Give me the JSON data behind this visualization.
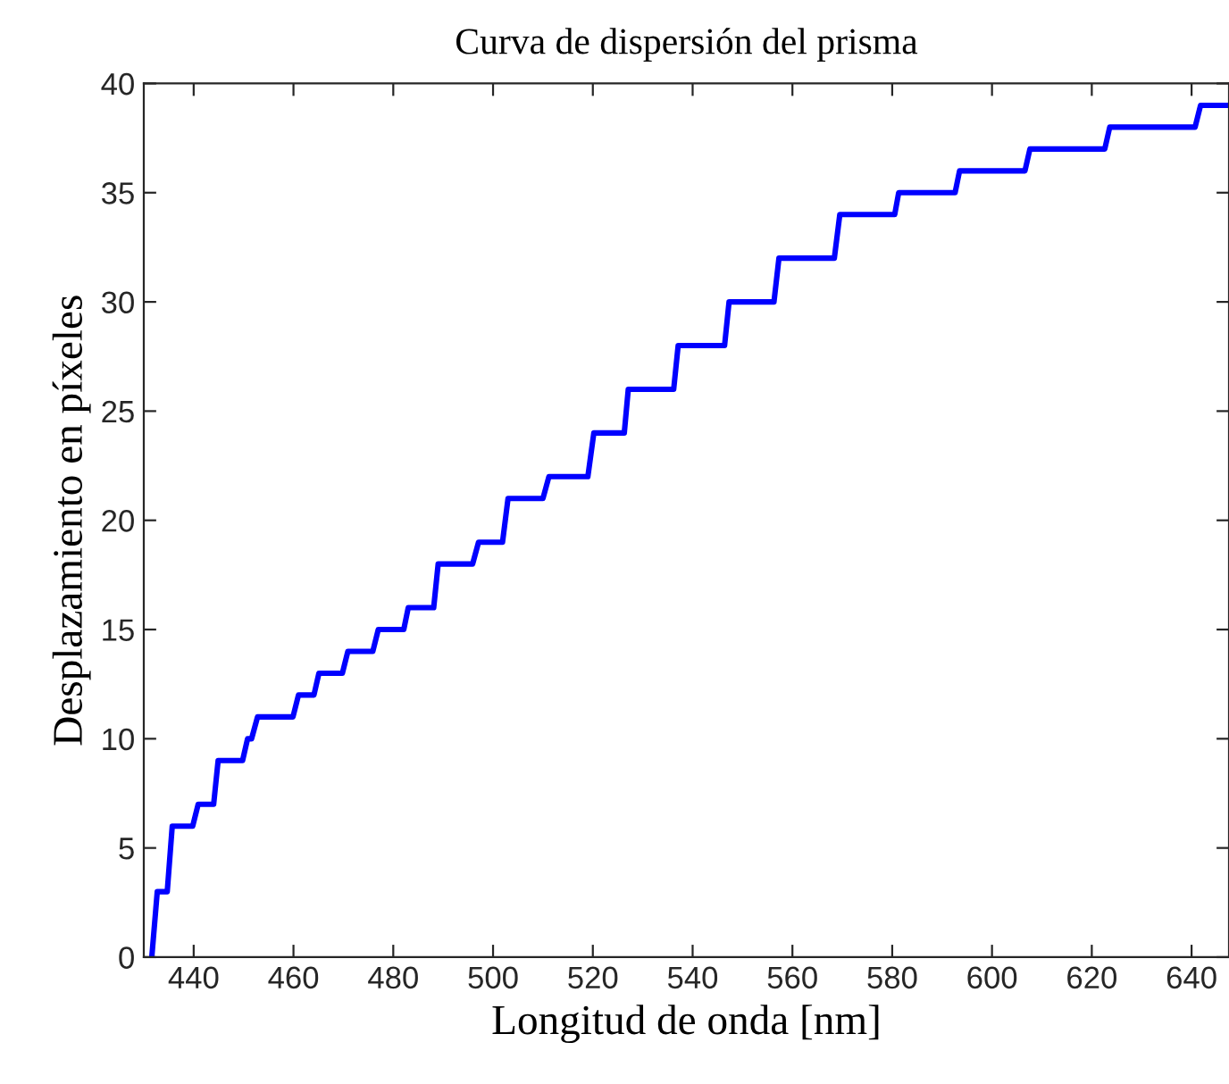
{
  "chart_data": {
    "type": "line",
    "title": "Curva de dispersión del prisma",
    "xlabel": "Longitud de onda [nm]",
    "ylabel": "Desplazamiento en píxeles",
    "x": [
      431.6,
      432.7,
      434.7,
      435.7,
      439.8,
      440.9,
      444.0,
      444.9,
      449.8,
      450.8,
      451.6,
      452.8,
      459.9,
      461.0,
      464.1,
      465.1,
      469.8,
      470.9,
      475.9,
      477.0,
      482.1,
      483.0,
      488.1,
      489.0,
      495.9,
      497.1,
      501.9,
      503.0,
      510.0,
      511.2,
      519.0,
      520.2,
      526.3,
      527.1,
      536.2,
      537.1,
      546.4,
      547.3,
      556.3,
      557.3,
      568.4,
      569.5,
      580.5,
      581.3,
      592.6,
      593.5,
      606.6,
      607.6,
      622.6,
      623.6,
      640.7,
      641.8,
      647.5
    ],
    "series": [
      {
        "color": "#0000ff",
        "values": [
          0,
          3,
          3,
          6,
          6,
          7,
          7,
          9,
          9,
          10,
          10,
          11,
          11,
          12,
          12,
          13,
          13,
          14,
          14,
          15,
          15,
          16,
          16,
          18,
          18,
          19,
          19,
          21,
          21,
          22,
          22,
          24,
          24,
          26,
          26,
          28,
          28,
          30,
          30,
          32,
          32,
          34,
          34,
          35,
          35,
          36,
          36,
          37,
          37,
          38,
          38,
          39,
          39
        ]
      }
    ],
    "xlim": [
      430,
      647.5
    ],
    "ylim": [
      0,
      40
    ],
    "xticks": [
      440,
      460,
      480,
      500,
      520,
      540,
      560,
      580,
      600,
      620,
      640
    ],
    "yticks": [
      0,
      5,
      10,
      15,
      20,
      25,
      30,
      35,
      40
    ],
    "grid": false,
    "legend": false,
    "marker": "none",
    "line_style": "solid"
  }
}
